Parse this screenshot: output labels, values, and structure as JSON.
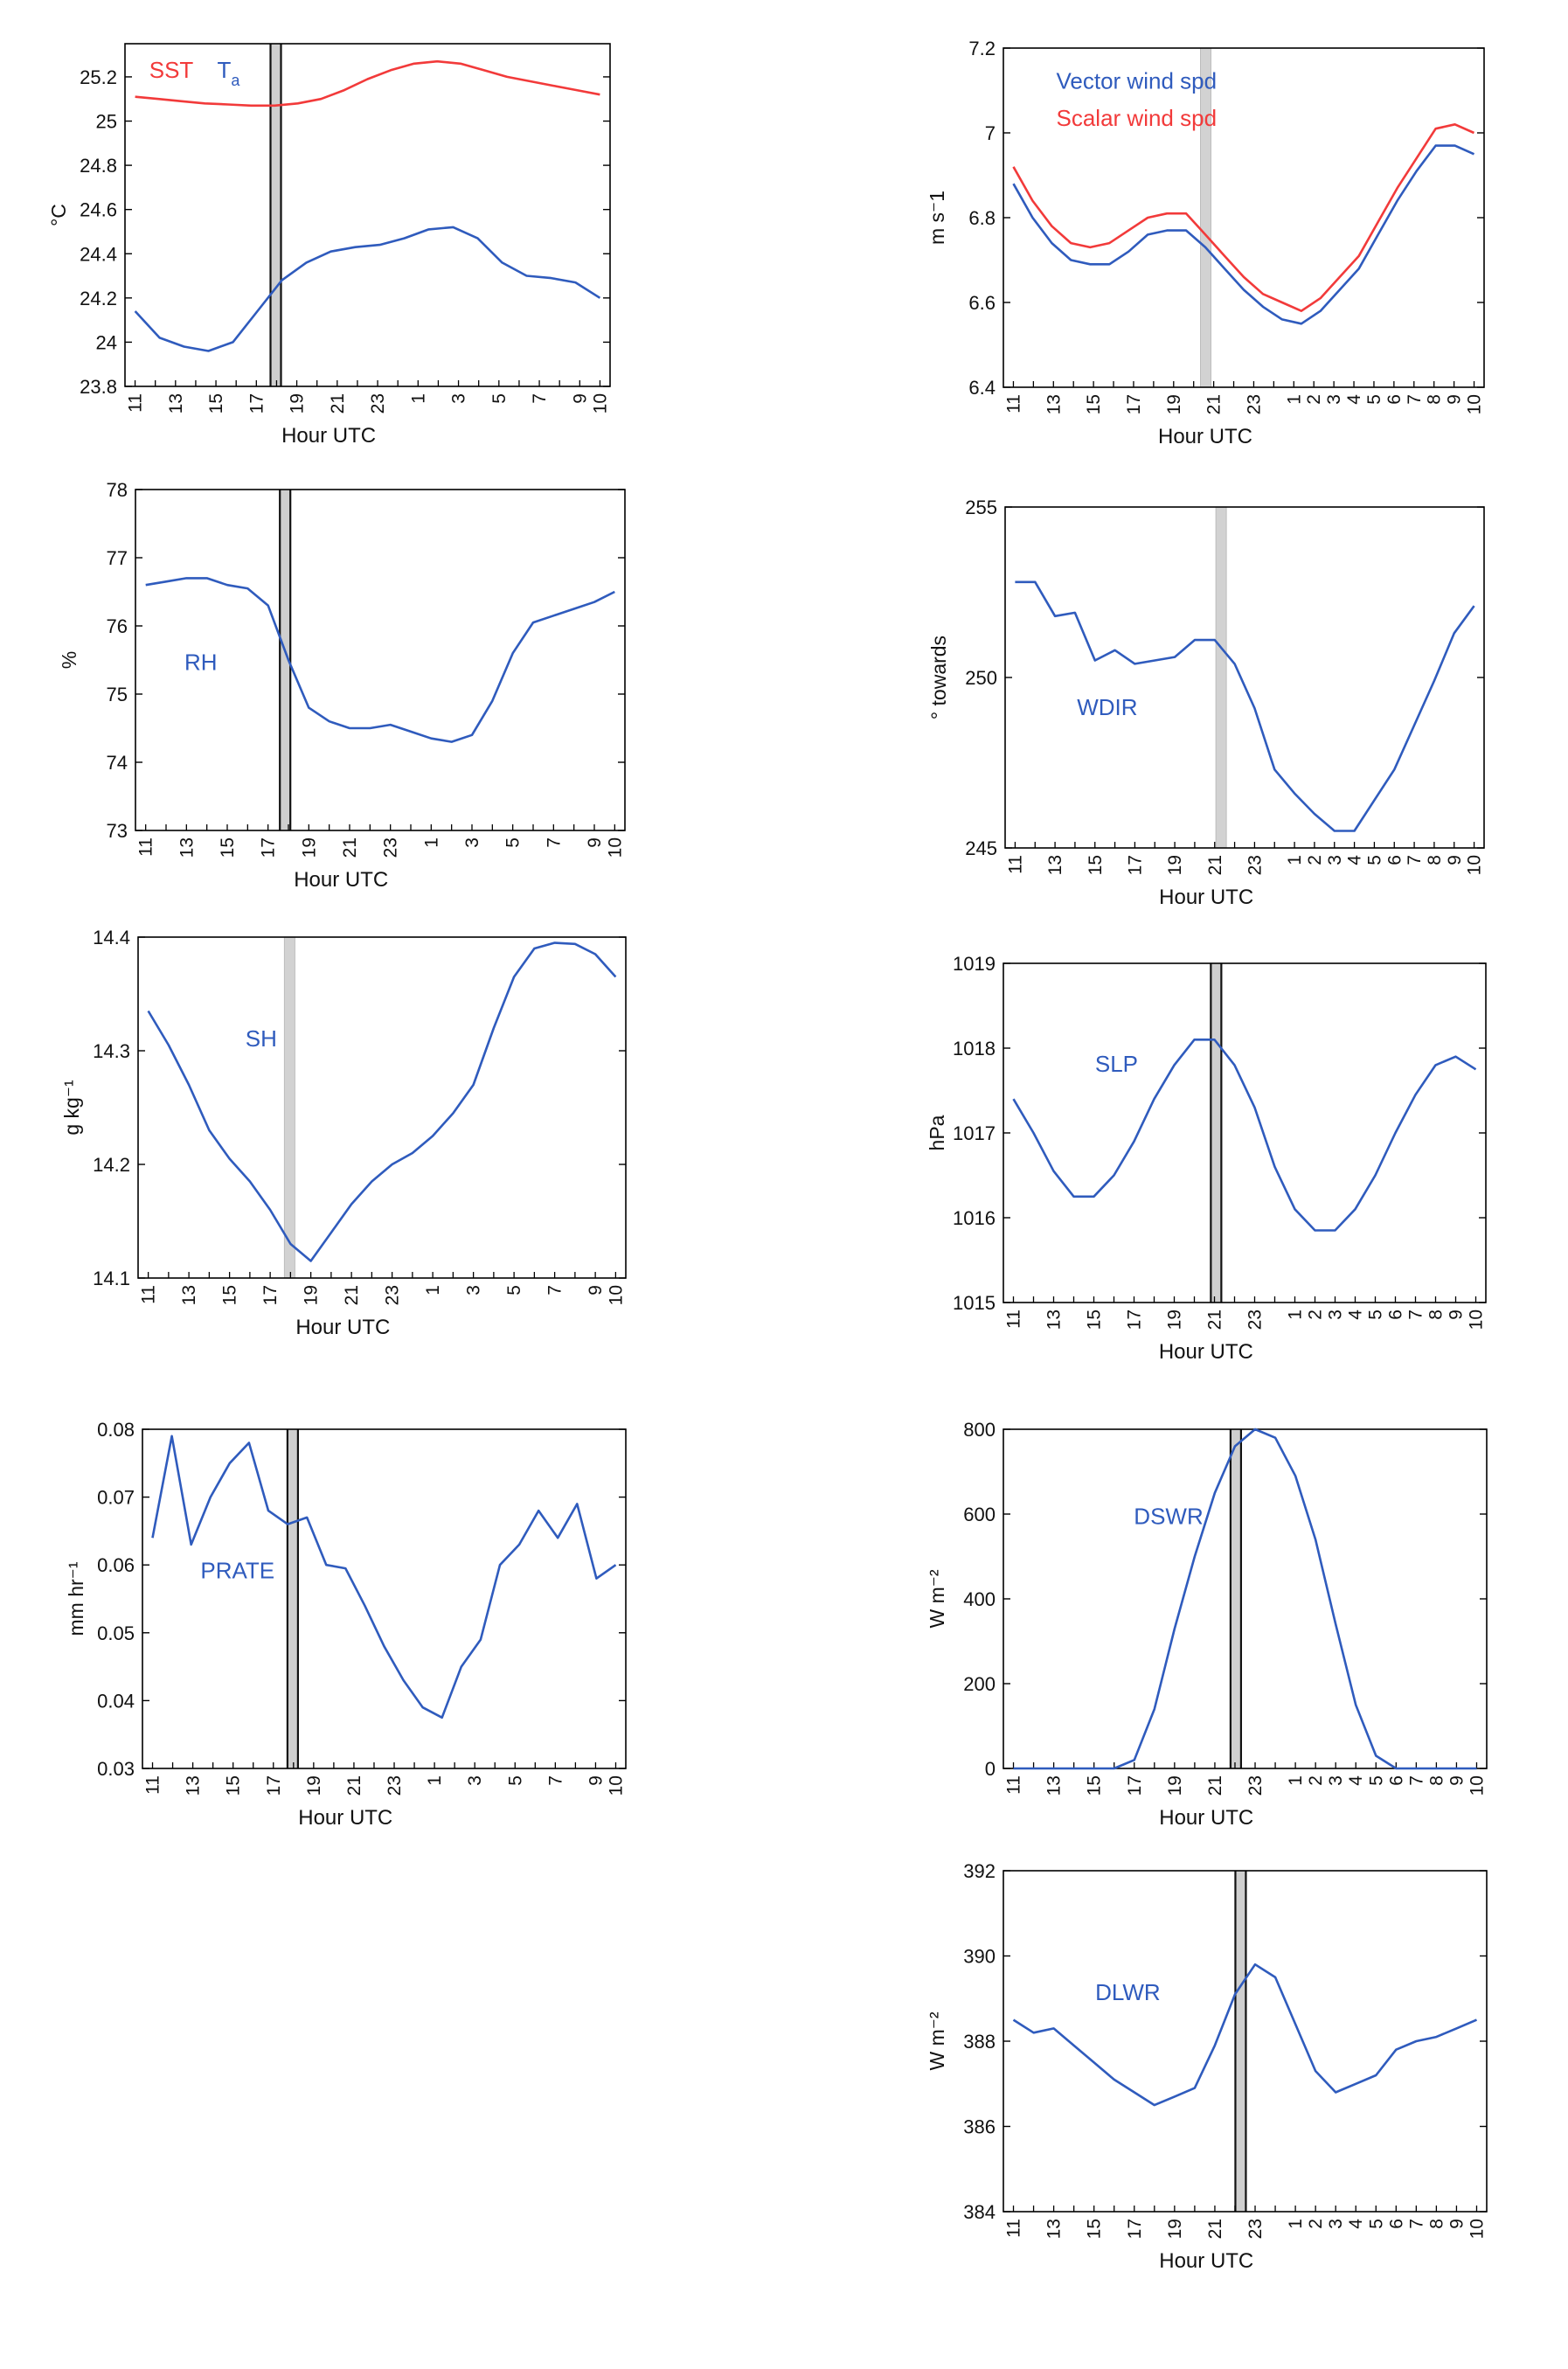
{
  "colors": {
    "blue": "#2f5bbd",
    "red": "#f23a3a",
    "band_dark": "#8a8a8a",
    "band_light": "#d2d2d2",
    "axis": "#000000"
  },
  "x_ticks": [
    "11",
    "13",
    "15",
    "17",
    "19",
    "21",
    "23",
    "1",
    "2",
    "3",
    "4",
    "5",
    "6",
    "7",
    "8",
    "9",
    "10"
  ],
  "x_ticks_left_first": [
    "11",
    "13",
    "15",
    "17",
    "19",
    "21",
    "23",
    "1",
    "3",
    "5",
    "7",
    "9",
    "10"
  ],
  "chart_data": [
    {
      "id": "temp",
      "type": "line",
      "xlabel": "Hour UTC",
      "ylabel": "°C",
      "ylim": [
        23.8,
        25.35
      ],
      "yticks": [
        "23.8",
        "24",
        "24.2",
        "24.4",
        "24.6",
        "24.8",
        "25",
        "25.2"
      ],
      "yticks_values": [
        23.8,
        24.0,
        24.2,
        24.4,
        24.6,
        24.8,
        25.0,
        25.2
      ],
      "legend": {
        "items": [
          {
            "text": "SST",
            "color": "red"
          },
          {
            "text": "T",
            "sub": "a",
            "color": "blue"
          }
        ]
      },
      "band": {
        "style": "dark"
      },
      "x_tick_set": "left",
      "series": [
        {
          "name": "SST",
          "color": "red",
          "values": [
            25.11,
            25.1,
            25.09,
            25.08,
            25.075,
            25.07,
            25.07,
            25.08,
            25.1,
            25.14,
            25.19,
            25.23,
            25.26,
            25.27,
            25.26,
            25.23,
            25.2,
            25.18,
            25.16,
            25.14,
            25.12
          ]
        },
        {
          "name": "T",
          "sub": "a",
          "color": "blue",
          "values": [
            24.14,
            24.02,
            23.98,
            23.96,
            24.0,
            24.14,
            24.28,
            24.36,
            24.41,
            24.43,
            24.44,
            24.47,
            24.51,
            24.52,
            24.47,
            24.36,
            24.3,
            24.29,
            24.27,
            24.2
          ]
        }
      ]
    },
    {
      "id": "wind",
      "type": "line",
      "xlabel": "Hour UTC",
      "ylabel": "m s⁻1",
      "ylim": [
        6.4,
        7.2
      ],
      "yticks": [
        "6.4",
        "6.6",
        "6.8",
        "7",
        "7.2"
      ],
      "yticks_values": [
        6.4,
        6.6,
        6.8,
        7.0,
        7.2
      ],
      "legend": {
        "items": [
          {
            "text": "Vector wind spd",
            "color": "blue"
          },
          {
            "text": "Scalar wind spd",
            "color": "red"
          }
        ]
      },
      "band": {
        "style": "light"
      },
      "x_tick_set": "full",
      "series": [
        {
          "name": "Vector wind spd",
          "color": "blue",
          "values": [
            6.88,
            6.8,
            6.74,
            6.7,
            6.69,
            6.69,
            6.72,
            6.76,
            6.77,
            6.77,
            6.73,
            6.68,
            6.63,
            6.59,
            6.56,
            6.55,
            6.58,
            6.63,
            6.68,
            6.76,
            6.84,
            6.91,
            6.97,
            6.97,
            6.95
          ]
        },
        {
          "name": "Scalar wind spd",
          "color": "red",
          "values": [
            6.92,
            6.84,
            6.78,
            6.74,
            6.73,
            6.74,
            6.77,
            6.8,
            6.81,
            6.81,
            6.76,
            6.71,
            6.66,
            6.62,
            6.6,
            6.58,
            6.61,
            6.66,
            6.71,
            6.79,
            6.87,
            6.94,
            7.01,
            7.02,
            7.0
          ]
        }
      ]
    },
    {
      "id": "rh",
      "type": "line",
      "xlabel": "Hour UTC",
      "ylabel": "%",
      "ylim": [
        73,
        78
      ],
      "yticks": [
        "73",
        "74",
        "75",
        "76",
        "77",
        "78"
      ],
      "yticks_values": [
        73,
        74,
        75,
        76,
        77,
        78
      ],
      "label": "RH",
      "band": {
        "style": "dark"
      },
      "x_tick_set": "left",
      "series": [
        {
          "color": "blue",
          "values": [
            76.6,
            76.65,
            76.7,
            76.7,
            76.6,
            76.55,
            76.3,
            75.5,
            74.8,
            74.6,
            74.5,
            74.5,
            74.55,
            74.45,
            74.35,
            74.3,
            74.4,
            74.9,
            75.6,
            76.05,
            76.15,
            76.25,
            76.35,
            76.5
          ]
        }
      ]
    },
    {
      "id": "wdir",
      "type": "line",
      "xlabel": "Hour UTC",
      "ylabel": "° towards",
      "ylim": [
        245,
        255
      ],
      "yticks": [
        "245",
        "250",
        "255"
      ],
      "yticks_values": [
        245,
        250,
        255
      ],
      "label": "WDIR",
      "band": {
        "style": "light"
      },
      "x_tick_set": "full",
      "series": [
        {
          "color": "blue",
          "values": [
            252.8,
            252.8,
            251.8,
            251.9,
            250.5,
            250.8,
            250.4,
            250.5,
            250.6,
            251.1,
            251.1,
            250.4,
            249.1,
            247.3,
            246.6,
            246.0,
            245.5,
            245.5,
            246.4,
            247.3,
            248.6,
            249.9,
            251.3,
            252.1
          ]
        }
      ]
    },
    {
      "id": "sh",
      "type": "line",
      "xlabel": "Hour UTC",
      "ylabel": "g kg⁻¹",
      "ylim": [
        14.1,
        14.4
      ],
      "yticks": [
        "14.1",
        "14.2",
        "14.3",
        "14.4"
      ],
      "yticks_values": [
        14.1,
        14.2,
        14.3,
        14.4
      ],
      "label": "SH",
      "band": {
        "style": "light"
      },
      "x_tick_set": "left",
      "series": [
        {
          "color": "blue",
          "values": [
            14.335,
            14.305,
            14.27,
            14.23,
            14.205,
            14.185,
            14.16,
            14.13,
            14.115,
            14.14,
            14.165,
            14.185,
            14.2,
            14.21,
            14.225,
            14.245,
            14.27,
            14.32,
            14.365,
            14.39,
            14.395,
            14.394,
            14.385,
            14.365
          ]
        }
      ]
    },
    {
      "id": "slp",
      "type": "line",
      "xlabel": "Hour UTC",
      "ylabel": "hPa",
      "ylim": [
        1015,
        1019
      ],
      "yticks": [
        "1015",
        "1016",
        "1017",
        "1018",
        "1019"
      ],
      "yticks_values": [
        1015,
        1016,
        1017,
        1018,
        1019
      ],
      "label": "SLP",
      "band": {
        "style": "dark"
      },
      "x_tick_set": "full",
      "series": [
        {
          "color": "blue",
          "values": [
            1017.4,
            1017.0,
            1016.55,
            1016.25,
            1016.25,
            1016.5,
            1016.9,
            1017.4,
            1017.8,
            1018.1,
            1018.1,
            1017.8,
            1017.3,
            1016.6,
            1016.1,
            1015.85,
            1015.85,
            1016.1,
            1016.5,
            1017.0,
            1017.45,
            1017.8,
            1017.9,
            1017.75
          ]
        }
      ]
    },
    {
      "id": "prate",
      "type": "line",
      "xlabel": "Hour UTC",
      "ylabel": "mm hr⁻¹",
      "ylim": [
        0.03,
        0.08
      ],
      "yticks": [
        "0.03",
        "0.04",
        "0.05",
        "0.06",
        "0.07",
        "0.08"
      ],
      "yticks_values": [
        0.03,
        0.04,
        0.05,
        0.06,
        0.07,
        0.08
      ],
      "label": "PRATE",
      "band": {
        "style": "dark"
      },
      "x_tick_set": "left",
      "series": [
        {
          "color": "blue",
          "values": [
            0.064,
            0.079,
            0.063,
            0.07,
            0.075,
            0.078,
            0.068,
            0.066,
            0.067,
            0.06,
            0.0595,
            0.054,
            0.048,
            0.043,
            0.039,
            0.0375,
            0.045,
            0.049,
            0.06,
            0.063,
            0.068,
            0.064,
            0.069,
            0.058,
            0.06
          ]
        }
      ]
    },
    {
      "id": "dswr",
      "type": "line",
      "xlabel": "Hour UTC",
      "ylabel": "W m⁻²",
      "ylim": [
        0,
        800
      ],
      "yticks": [
        "0",
        "200",
        "400",
        "600",
        "800"
      ],
      "yticks_values": [
        0,
        200,
        400,
        600,
        800
      ],
      "label": "DSWR",
      "band": {
        "style": "dark"
      },
      "x_tick_set": "full",
      "series": [
        {
          "color": "blue",
          "values": [
            0,
            0,
            0,
            0,
            0,
            0,
            20,
            140,
            330,
            500,
            650,
            760,
            800,
            780,
            690,
            540,
            340,
            150,
            30,
            0,
            0,
            0,
            0,
            0
          ]
        }
      ]
    },
    {
      "id": "dlwr",
      "type": "line",
      "xlabel": "Hour UTC",
      "ylabel": "W m⁻²",
      "ylim": [
        384,
        392
      ],
      "yticks": [
        "384",
        "386",
        "388",
        "390",
        "392"
      ],
      "yticks_values": [
        384,
        386,
        388,
        390,
        392
      ],
      "label": "DLWR",
      "band": {
        "style": "dark"
      },
      "x_tick_set": "full",
      "series": [
        {
          "color": "blue",
          "values": [
            388.5,
            388.2,
            388.3,
            387.9,
            387.5,
            387.1,
            386.8,
            386.5,
            386.7,
            386.9,
            387.9,
            389.1,
            389.8,
            389.5,
            388.4,
            387.3,
            386.8,
            387.0,
            387.2,
            387.8,
            388.0,
            388.1,
            388.3,
            388.5
          ]
        }
      ]
    }
  ]
}
